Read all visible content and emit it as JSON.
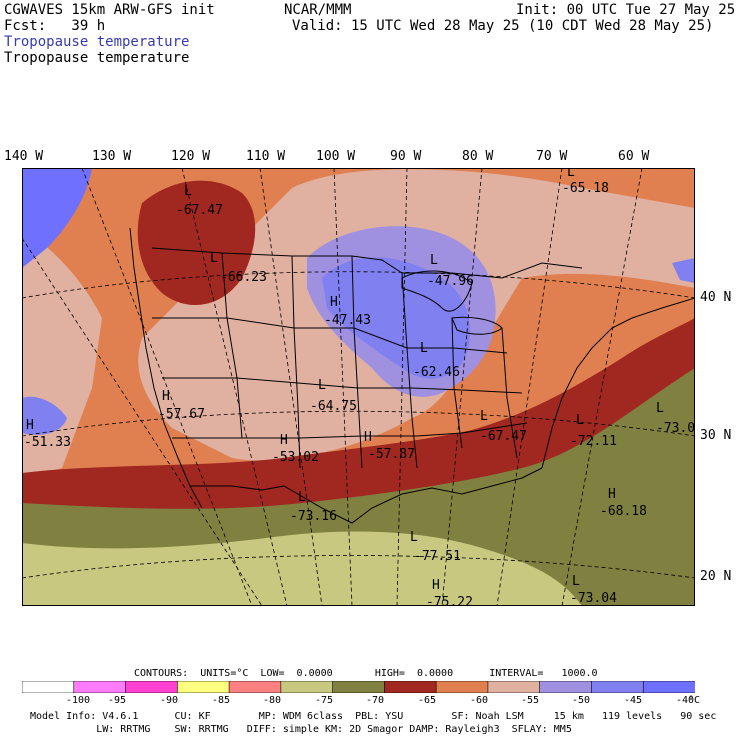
{
  "header": {
    "model": "CGWAVES 15km ARW-GFS init",
    "org": "NCAR/MMM",
    "init": "Init: 00 UTC Tue 27 May 25",
    "fcst": "Fcst:   39 h",
    "valid": "Valid: 15 UTC Wed 28 May 25 (10 CDT Wed 28 May 25)",
    "field_blue": "Tropopause temperature",
    "field_black": "Tropopause temperature"
  },
  "longitudes": [
    "140 W",
    "130 W",
    "120 W",
    "110 W",
    "100 W",
    "90 W",
    "80 W",
    "70 W",
    "60 W"
  ],
  "latitudes": [
    "40 N",
    "30 N",
    "20 N"
  ],
  "extrema": [
    {
      "type": "L",
      "value": "-67.47"
    },
    {
      "type": "L",
      "value": "-65.18"
    },
    {
      "type": "L",
      "value": "-66.23"
    },
    {
      "type": "L",
      "value": "-47.96"
    },
    {
      "type": "H",
      "value": "-47.43"
    },
    {
      "type": "L",
      "value": "-62.46"
    },
    {
      "type": "H",
      "value": "-57.67"
    },
    {
      "type": "L",
      "value": "-64.75"
    },
    {
      "type": "H",
      "value": "-51.33"
    },
    {
      "type": "H",
      "value": "-53.02"
    },
    {
      "type": "H",
      "value": "-57.87"
    },
    {
      "type": "L",
      "value": "-67.47"
    },
    {
      "type": "L",
      "value": "-72.11"
    },
    {
      "type": "L",
      "value": "-73.0"
    },
    {
      "type": "L",
      "value": "-73.16"
    },
    {
      "type": "H",
      "value": "-68.18"
    },
    {
      "type": "L",
      "value": "-77.51"
    },
    {
      "type": "H",
      "value": "-75.22"
    },
    {
      "type": "L",
      "value": "-73.04"
    }
  ],
  "contours": {
    "text": "CONTOURS:  UNITS=°C  LOW=  0.0000       HIGH=  0.0000      INTERVAL=   1000.0"
  },
  "colorbar": {
    "colors": [
      "#ffffff",
      "#ff7cff",
      "#ff40d0",
      "#ffff80",
      "#ff8080",
      "#c8c880",
      "#808040",
      "#a02820",
      "#e08050",
      "#e0b0a0",
      "#a090e0",
      "#8080f0",
      "#7070ff"
    ],
    "labels": [
      "-100",
      "-95",
      "-90",
      "-85",
      "-80",
      "-75",
      "-70",
      "-65",
      "-60",
      "-55",
      "-50",
      "-45",
      "-40",
      "°C"
    ]
  },
  "footer": {
    "line1": "Model Info: V4.6.1      CU: KF        MP: WDM 6class  PBL: YSU        SF: Noah LSM     15 km   119 levels   90 sec",
    "line2": "           LW: RRTMG    SW: RRTMG   DIFF: simple KM: 2D Smagor DAMP: Rayleigh3  SFLAY: MM5"
  }
}
